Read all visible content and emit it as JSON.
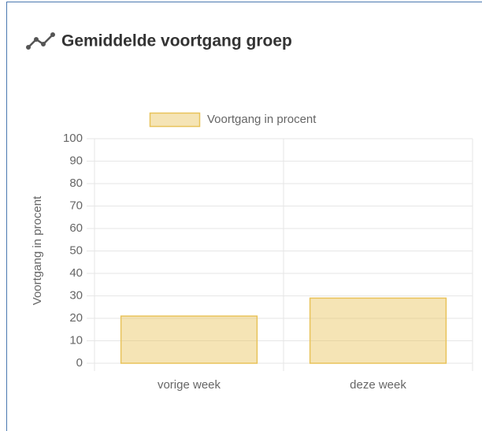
{
  "chart_data": {
    "type": "bar",
    "title": "Gemiddelde voortgang groep",
    "categories": [
      "vorige week",
      "deze week"
    ],
    "series": [
      {
        "name": "Voortgang in procent",
        "color": "#e8c35a",
        "values": [
          21,
          29
        ]
      }
    ],
    "ylabel": "Voortgang in procent",
    "ylim": [
      0,
      100
    ],
    "yticks": [
      0,
      10,
      20,
      30,
      40,
      50,
      60,
      70,
      80,
      90,
      100
    ],
    "grid": true,
    "legend": "top"
  }
}
